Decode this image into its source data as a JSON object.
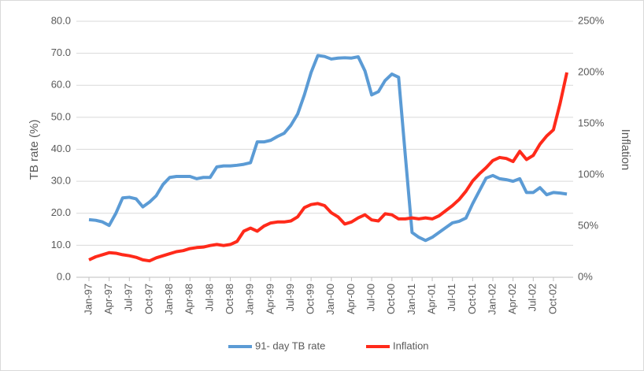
{
  "chart_data": {
    "type": "line",
    "y_label": "TB rate (%)",
    "y2_label": "Inflation",
    "categories": [
      "Jan-97",
      null,
      null,
      "Apr-97",
      null,
      null,
      "Jul-97",
      null,
      null,
      "Oct-97",
      null,
      null,
      "Jan-98",
      null,
      null,
      "Apr-98",
      null,
      null,
      "Jul-98",
      null,
      null,
      "Oct-98",
      null,
      null,
      "Jan-99",
      null,
      null,
      "Apr-99",
      null,
      null,
      "Jul-99",
      null,
      null,
      "Oct-99",
      null,
      null,
      "Jan-00",
      null,
      null,
      "Apr-00",
      null,
      null,
      "Jul-00",
      null,
      null,
      "Oct-00",
      null,
      null,
      "Jan-01",
      null,
      null,
      "Apr-01",
      null,
      null,
      "Jul-01",
      null,
      null,
      "Oct-01",
      null,
      null,
      "Jan-02",
      null,
      null,
      "Apr-02",
      null,
      null,
      "Jul-02",
      null,
      null,
      "Oct-02",
      null,
      null
    ],
    "series": [
      {
        "name": "91- day TB rate",
        "color": "#5b9bd5",
        "axis": "y",
        "values": [
          18,
          17.8,
          17.3,
          16.2,
          20,
          24.8,
          25,
          24.5,
          22,
          23.5,
          25.5,
          29,
          31.2,
          31.5,
          31.5,
          31.5,
          30.8,
          31.2,
          31.2,
          34.5,
          34.8,
          34.8,
          35,
          35.3,
          35.8,
          42.3,
          42.3,
          42.8,
          44,
          45,
          47.5,
          51,
          57,
          64,
          69.3,
          69,
          68.2,
          68.5,
          68.6,
          68.5,
          68.9,
          64.5,
          57,
          58,
          61.5,
          63.5,
          62.5,
          38,
          14,
          12.5,
          11.5,
          12.5,
          14,
          15.5,
          17,
          17.5,
          18.5,
          23,
          27,
          31,
          31.8,
          30.8,
          30.5,
          30,
          30.8,
          26.5,
          26.5,
          28,
          25.8,
          26.5,
          26.3,
          26
        ]
      },
      {
        "name": "Inflation",
        "color": "#ff2a1a",
        "axis": "y2",
        "values": [
          17,
          20,
          22,
          24,
          23.5,
          22,
          21,
          19.5,
          17,
          16,
          19,
          21,
          23,
          25,
          26,
          28,
          29,
          29.5,
          31,
          32,
          31,
          32,
          35,
          45,
          48,
          45,
          50,
          53,
          54,
          54,
          55,
          59,
          68,
          71,
          72,
          70,
          63,
          59,
          52,
          54,
          58,
          61,
          56,
          55,
          62,
          61,
          57,
          57,
          58,
          57,
          58,
          57,
          60,
          65,
          70,
          76,
          84,
          94,
          101,
          107,
          114,
          117,
          116,
          113,
          123,
          115,
          119,
          130,
          138,
          144,
          170,
          200
        ]
      }
    ],
    "ylim": [
      0,
      80
    ],
    "yticks": [
      {
        "value": 0,
        "label": "0.0"
      },
      {
        "value": 10,
        "label": "10.0"
      },
      {
        "value": 20,
        "label": "20.0"
      },
      {
        "value": 30,
        "label": "30.0"
      },
      {
        "value": 40,
        "label": "40.0"
      },
      {
        "value": 50,
        "label": "50.0"
      },
      {
        "value": 60,
        "label": "60.0"
      },
      {
        "value": 70,
        "label": "70.0"
      },
      {
        "value": 80,
        "label": "80.0"
      }
    ],
    "y2lim": [
      0,
      250
    ],
    "y2ticks": [
      {
        "value": 0,
        "label": "0%"
      },
      {
        "value": 50,
        "label": "50%"
      },
      {
        "value": 100,
        "label": "100%"
      },
      {
        "value": 150,
        "label": "150%"
      },
      {
        "value": 200,
        "label": "200%"
      },
      {
        "value": 250,
        "label": "250%"
      }
    ],
    "grid": true,
    "legend": "bottom"
  }
}
